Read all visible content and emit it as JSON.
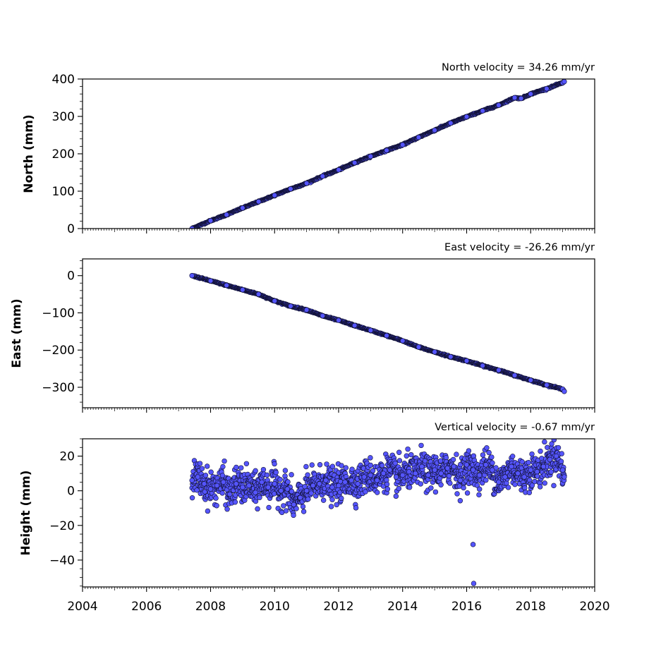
{
  "chart_data": [
    {
      "type": "scatter",
      "title": "North velocity = 34.26 mm/yr",
      "ylabel": "North (mm)",
      "xlabel": "",
      "xlim": [
        2004,
        2020
      ],
      "ylim": [
        0,
        400
      ],
      "yticks": [
        0,
        100,
        200,
        300,
        400
      ],
      "ytick_labels": [
        "0",
        "100",
        "200",
        "300",
        "400"
      ],
      "x_tick_labels_visible": false,
      "marker_color": "#5555ff",
      "marker_edge": "#111133",
      "series": [
        {
          "x": [
            2007.42,
            2008.0,
            2008.5,
            2009.0,
            2009.5,
            2010.0,
            2010.5,
            2011.0,
            2011.5,
            2012.0,
            2012.5,
            2013.0,
            2013.5,
            2014.0,
            2014.5,
            2015.0,
            2015.5,
            2016.0,
            2016.5,
            2017.0,
            2017.5,
            2017.7,
            2018.0,
            2018.5,
            2019.0,
            2019.05
          ],
          "y": [
            0,
            21,
            37,
            55,
            72,
            89,
            106,
            121,
            140,
            157,
            176,
            193,
            209,
            224,
            244,
            263,
            282,
            299,
            315,
            330,
            350,
            348,
            360,
            374,
            390,
            393
          ]
        }
      ]
    },
    {
      "type": "scatter",
      "title": "East velocity = -26.26 mm/yr",
      "ylabel": "East (mm)",
      "xlabel": "",
      "xlim": [
        2004,
        2020
      ],
      "ylim": [
        -355,
        45
      ],
      "yticks": [
        0,
        -100,
        -200,
        -300
      ],
      "ytick_labels": [
        "0",
        "−100",
        "−200",
        "−300"
      ],
      "x_tick_labels_visible": false,
      "marker_color": "#5555ff",
      "marker_edge": "#111133",
      "series": [
        {
          "x": [
            2007.42,
            2008.0,
            2008.5,
            2009.0,
            2009.5,
            2010.0,
            2010.5,
            2011.0,
            2011.5,
            2012.0,
            2012.5,
            2013.0,
            2013.5,
            2014.0,
            2014.5,
            2015.0,
            2015.5,
            2016.0,
            2016.5,
            2017.0,
            2017.5,
            2018.0,
            2018.5,
            2019.0,
            2019.05
          ],
          "y": [
            0,
            -14,
            -26,
            -38,
            -50,
            -68,
            -82,
            -92,
            -108,
            -120,
            -134,
            -147,
            -161,
            -175,
            -192,
            -205,
            -218,
            -229,
            -242,
            -254,
            -268,
            -281,
            -294,
            -305,
            -311
          ]
        }
      ]
    },
    {
      "type": "scatter",
      "title": "Vertical velocity = -0.67 mm/yr",
      "ylabel": "Height (mm)",
      "xlabel": "",
      "xlim": [
        2004,
        2020
      ],
      "ylim": [
        -55.5,
        30
      ],
      "yticks": [
        20,
        0,
        -20,
        -40
      ],
      "ytick_labels": [
        "20",
        "0",
        "−20",
        "−40"
      ],
      "xticks": [
        2004,
        2006,
        2008,
        2010,
        2012,
        2014,
        2016,
        2018,
        2020
      ],
      "xtick_labels": [
        "2004",
        "2006",
        "2008",
        "2010",
        "2012",
        "2014",
        "2016",
        "2018",
        "2020"
      ],
      "marker_color": "#5555ff",
      "marker_edge": "#111133",
      "series": [
        {
          "x": [
            2007.42,
            2007.6,
            2007.8,
            2008.0,
            2008.2,
            2008.4,
            2008.6,
            2008.8,
            2009.0,
            2009.2,
            2009.4,
            2009.6,
            2009.8,
            2010.0,
            2010.2,
            2010.4,
            2010.6,
            2010.8,
            2011.0,
            2011.2,
            2011.4,
            2011.6,
            2011.8,
            2012.0,
            2012.2,
            2012.4,
            2012.6,
            2012.8,
            2013.0,
            2013.2,
            2013.4,
            2013.6,
            2013.8,
            2014.0,
            2014.2,
            2014.4,
            2014.6,
            2014.8,
            2015.0,
            2015.2,
            2015.4,
            2015.6,
            2015.8,
            2016.0,
            2016.2,
            2016.4,
            2016.6,
            2016.8,
            2017.0,
            2017.2,
            2017.4,
            2017.6,
            2017.8,
            2018.0,
            2018.2,
            2018.4,
            2018.6,
            2018.8,
            2019.0,
            2019.05
          ],
          "y": [
            6,
            8,
            4,
            1,
            3,
            5,
            -2,
            4,
            2,
            3,
            -1,
            5,
            2,
            4,
            0,
            1,
            -8,
            -4,
            0,
            3,
            4,
            6,
            2,
            3,
            5,
            6,
            4,
            8,
            9,
            6,
            10,
            12,
            8,
            9,
            11,
            10,
            14,
            9,
            12,
            10,
            13,
            14,
            6,
            15,
            12,
            9,
            15,
            12,
            5,
            8,
            14,
            10,
            8,
            12,
            11,
            14,
            18,
            20,
            12,
            8
          ]
        },
        {
          "name": "",
          "outliers": true,
          "x": [
            2016.2,
            2016.22
          ],
          "y": [
            -31,
            -53.5
          ]
        }
      ]
    }
  ]
}
